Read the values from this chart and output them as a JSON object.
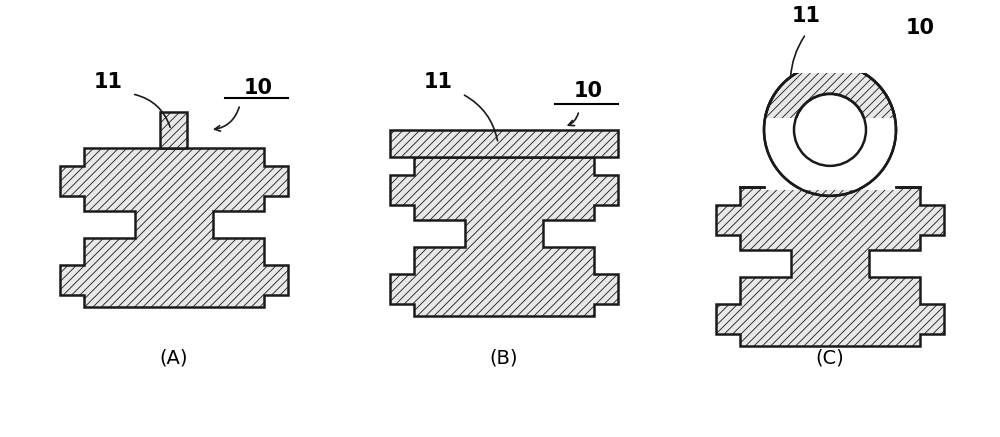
{
  "bg_color": "#ffffff",
  "hatch_pattern": "////",
  "edge_color": "#1a1a1a",
  "face_color": "#e8e8e8",
  "line_width": 1.8,
  "hatch_lw": 0.6,
  "labels": [
    "(A)",
    "(B)",
    "(C)"
  ],
  "font_size_label": 14,
  "font_size_num": 15
}
